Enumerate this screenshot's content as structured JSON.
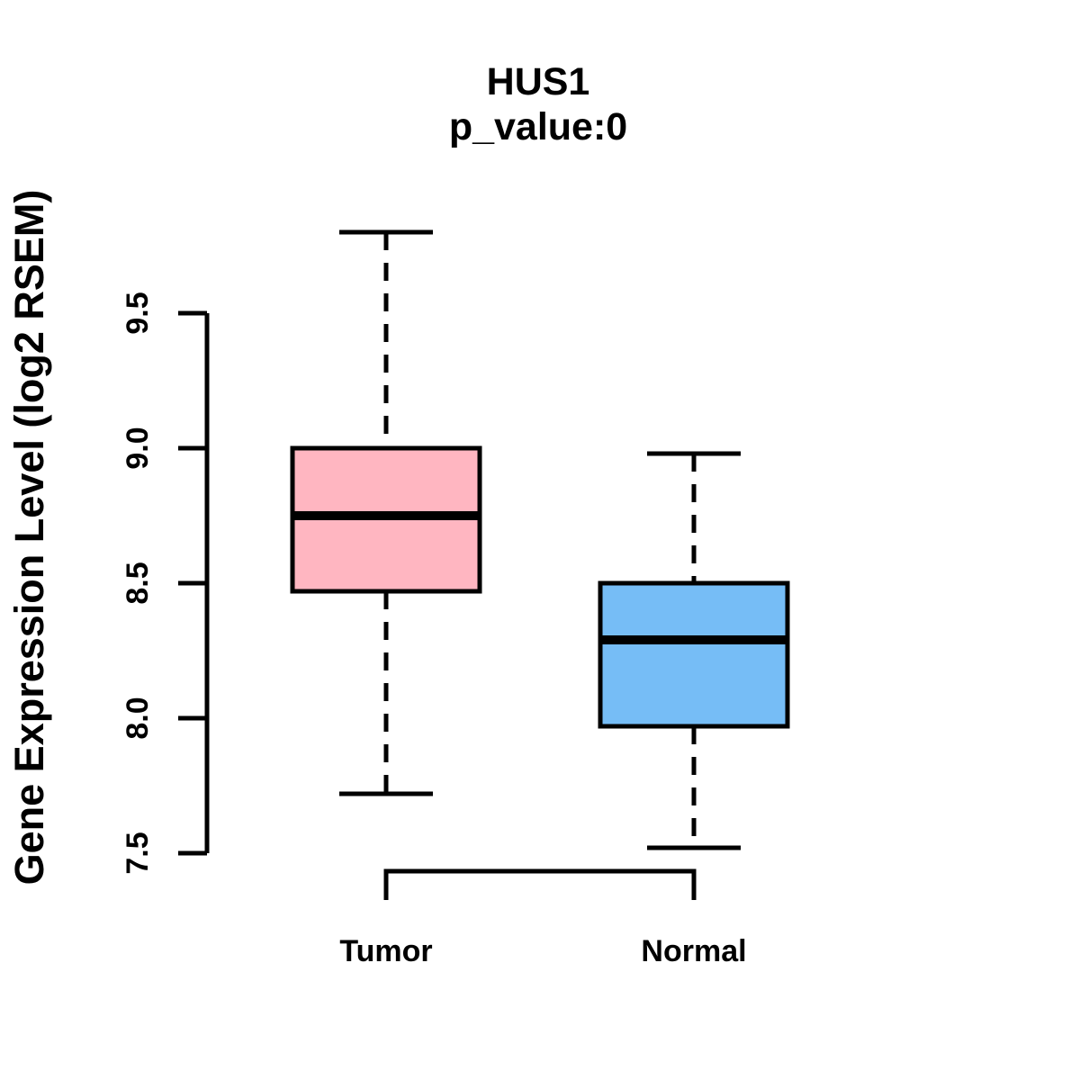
{
  "title": "HUS1",
  "subtitle": "p_value:0",
  "ylabel": "Gene Expression Level (log2 RSEM)",
  "colors": {
    "background": "#FFFFFF",
    "axis": "#000000",
    "tumor_fill": "#FFB6C1",
    "normal_fill": "#76BDF6"
  },
  "chart_data": {
    "type": "boxplot",
    "title": "HUS1",
    "subtitle": "p_value:0",
    "ylabel": "Gene Expression Level (log2 RSEM)",
    "xlabel": "",
    "categories": [
      "Tumor",
      "Normal"
    ],
    "series": [
      {
        "name": "Tumor",
        "whisker_low": 7.72,
        "q1": 8.47,
        "median": 8.75,
        "q3": 9.0,
        "whisker_high": 9.8,
        "color": "#FFB6C1"
      },
      {
        "name": "Normal",
        "whisker_low": 7.52,
        "q1": 7.97,
        "median": 8.29,
        "q3": 8.5,
        "whisker_high": 8.98,
        "color": "#76BDF6"
      }
    ],
    "yticks": [
      7.5,
      8.0,
      8.5,
      9.0,
      9.5
    ],
    "ytick_labels": [
      "7.5",
      "8.0",
      "8.5",
      "9.0",
      "9.5"
    ],
    "ylim": [
      7.5,
      9.5
    ],
    "grid": false,
    "legend": null,
    "outliers": []
  }
}
